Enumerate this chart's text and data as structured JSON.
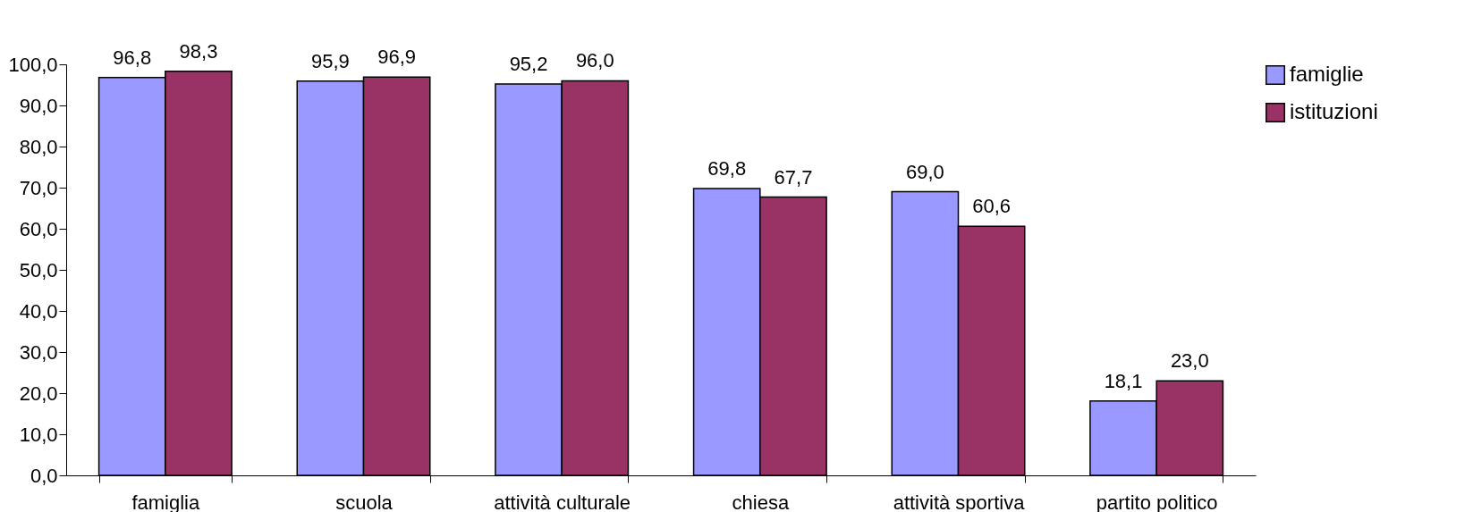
{
  "chart_data": {
    "type": "bar",
    "categories": [
      "famiglia",
      "scuola",
      "attività culturale",
      "chiesa",
      "attività sportiva",
      "partito politico"
    ],
    "series": [
      {
        "name": "famiglie",
        "color": "#9999ff",
        "values": [
          96.8,
          95.9,
          95.2,
          69.8,
          69.0,
          18.1
        ],
        "value_labels": [
          "96,8",
          "95,9",
          "95,2",
          "69,8",
          "69,0",
          "18,1"
        ]
      },
      {
        "name": "istituzioni",
        "color": "#993366",
        "values": [
          98.3,
          96.9,
          96.0,
          67.7,
          60.6,
          23.0
        ],
        "value_labels": [
          "98,3",
          "96,9",
          "96,0",
          "67,7",
          "60,6",
          "23,0"
        ]
      }
    ],
    "ylim": [
      0,
      100
    ],
    "yticks": [
      {
        "value": 0,
        "label": "0,0"
      },
      {
        "value": 10,
        "label": "10,0"
      },
      {
        "value": 20,
        "label": "20,0"
      },
      {
        "value": 30,
        "label": "30,0"
      },
      {
        "value": 40,
        "label": "40,0"
      },
      {
        "value": 50,
        "label": "50,0"
      },
      {
        "value": 60,
        "label": "60,0"
      },
      {
        "value": 70,
        "label": "70,0"
      },
      {
        "value": 80,
        "label": "80,0"
      },
      {
        "value": 90,
        "label": "90,0"
      },
      {
        "value": 100,
        "label": "100,0"
      }
    ],
    "grid": false,
    "legend": "top right"
  }
}
